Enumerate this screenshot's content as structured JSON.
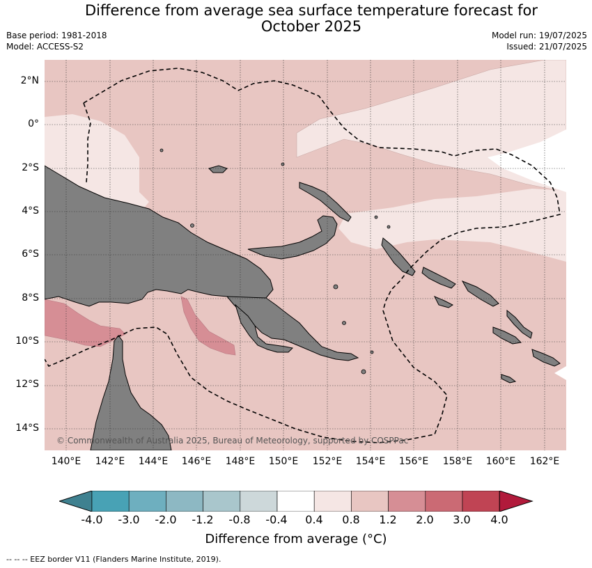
{
  "title": "Difference from average sea surface temperature forecast for\nOctober 2025",
  "meta_left": {
    "base_period": "Base period: 1981-2018",
    "model": "Model: ACCESS-S2"
  },
  "meta_right": {
    "model_run": "Model run: 19/07/2025",
    "issued": "Issued: 21/07/2025"
  },
  "map": {
    "lat_labels": [
      "2°N",
      "0°",
      "2°S",
      "4°S",
      "6°S",
      "8°S",
      "10°S",
      "12°S",
      "14°S"
    ],
    "lon_labels": [
      "140°E",
      "142°E",
      "144°E",
      "146°E",
      "148°E",
      "150°E",
      "152°E",
      "154°E",
      "156°E",
      "158°E",
      "160°E",
      "162°E"
    ],
    "copyright": "© Commonwealth of Australia 2025, Bureau of Meteorology, supported by COSPPac",
    "land_color": "#808080",
    "dominant_anomaly_class": "0.8 to 1.2",
    "warm_patch_class": "1.2 to 2.0",
    "cool_zones_class": "0.4 to 0.8",
    "neutral_zone_class": "-0.4 to 0.4"
  },
  "colorbar": {
    "title": "Difference from average (°C)",
    "tick_labels": [
      "-4.0",
      "-3.0",
      "-2.0",
      "-1.2",
      "-0.8",
      "-0.4",
      "0.4",
      "0.8",
      "1.2",
      "2.0",
      "3.0",
      "4.0"
    ],
    "colors": [
      "#3f8190",
      "#48a2b5",
      "#6eafbf",
      "#8db8c3",
      "#a9c6cc",
      "#cdd8da",
      "#ffffff",
      "#f5e6e4",
      "#e8c6c2",
      "#d68e95",
      "#cb6a74",
      "#c04454",
      "#b11a3b"
    ]
  },
  "eez_legend": "--  --  -- EEZ border V11 (Flanders Marine Institute, 2019)."
}
